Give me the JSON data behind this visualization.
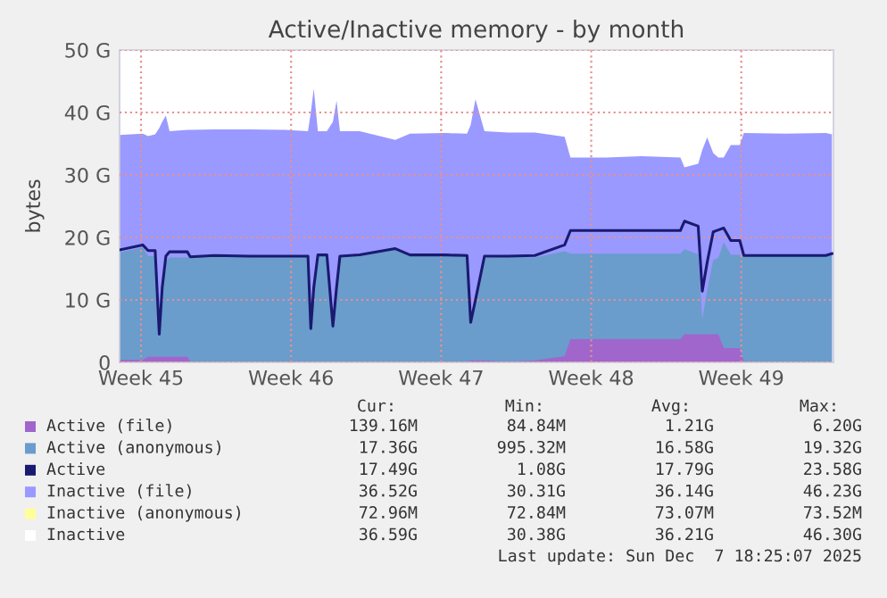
{
  "chart_data": {
    "type": "area",
    "title": "Active/Inactive memory - by month",
    "ylabel": "bytes",
    "x": [
      "2025-11-04T12:00",
      "2025-11-05T13:55",
      "2025-11-05T19:55",
      "2025-11-06T03:50",
      "2025-11-06T08:25",
      "2025-11-06T11:45",
      "2025-11-06T15:50",
      "2025-11-06T19:55",
      "2025-11-07T15:50",
      "2025-11-07T19:10",
      "2025-11-08T21:50",
      "2025-11-10T13:40",
      "2025-11-12T05:30",
      "2025-11-13T06:55",
      "2025-11-13T10:05",
      "2025-11-13T13:25",
      "2025-11-13T18:00",
      "2025-11-14T04:05",
      "2025-11-14T10:50",
      "2025-11-14T14:55",
      "2025-11-14T18:40",
      "2025-11-15T16:50",
      "2025-11-17T08:40",
      "2025-11-18T01:10",
      "2025-11-19T17:00",
      "2025-11-20T17:00",
      "2025-11-20T21:05",
      "2025-11-21T02:25",
      "2025-11-21T12:30",
      "2025-11-22T14:55",
      "2025-11-23T20:55",
      "2025-11-25T06:15",
      "2025-11-25T12:45",
      "2025-11-27T04:35",
      "2025-11-28T20:25",
      "2025-11-30T15:50",
      "2025-11-30T20:25",
      "2025-12-01T11:45",
      "2025-12-01T16:20",
      "2025-12-01T21:50",
      "2025-12-02T04:35",
      "2025-12-02T10:20",
      "2025-12-02T16:20",
      "2025-12-03T00:15",
      "2025-12-03T10:20",
      "2025-12-03T14:55",
      "2025-12-05T12:55",
      "2025-12-07T10:35",
      "2025-12-07T17:30"
    ],
    "xlim": [
      "2025-11-04T12:00",
      "2025-12-07T19:12"
    ],
    "xticks": [
      {
        "value": "2025-11-05T12:00",
        "label": "Week 45"
      },
      {
        "value": "2025-11-12T12:00",
        "label": "Week 46"
      },
      {
        "value": "2025-11-19T12:00",
        "label": "Week 47"
      },
      {
        "value": "2025-11-26T12:00",
        "label": "Week 48"
      },
      {
        "value": "2025-12-03T12:00",
        "label": "Week 49"
      }
    ],
    "ylim": [
      0,
      50
    ],
    "yticks": [
      0,
      {
        "value": 10,
        "label": "10 G"
      },
      {
        "value": 20,
        "label": "20 G"
      },
      {
        "value": 30,
        "label": "30 G"
      },
      {
        "value": 40,
        "label": "40 G"
      },
      {
        "value": 50,
        "label": "50 G"
      }
    ],
    "grid": true,
    "legend": "bottom",
    "series": [
      {
        "name": "Active (file)",
        "color": "#a066cc",
        "values": [
          0.4,
          0.4,
          0.9,
          0.9,
          0.9,
          0.9,
          0.9,
          0.9,
          0.9,
          0.1,
          0.1,
          0.1,
          0.1,
          0.1,
          0.1,
          0.1,
          0.1,
          0.1,
          0.1,
          0.1,
          0.1,
          0.1,
          0.1,
          0.1,
          0.1,
          0.1,
          0.3,
          0.3,
          0.3,
          0.1,
          0.3,
          1.0,
          3.7,
          3.7,
          3.7,
          3.7,
          4.5,
          4.5,
          4.5,
          4.5,
          4.5,
          4.5,
          2.3,
          2.3,
          2.3,
          0.1,
          0.1,
          0.1,
          0.1
        ]
      },
      {
        "name": "Active (anonymous)",
        "color": "#6a9ccc",
        "values": [
          17.6,
          18.4,
          17.0,
          17.0,
          3.6,
          11.1,
          16.1,
          16.8,
          16.8,
          16.8,
          17.0,
          16.9,
          16.9,
          16.9,
          5.3,
          11.9,
          17.1,
          17.1,
          5.7,
          11.9,
          16.9,
          17.1,
          18.1,
          17.1,
          17.1,
          17.0,
          6.1,
          9.7,
          16.7,
          16.9,
          16.8,
          17.8,
          17.4,
          17.4,
          17.4,
          17.4,
          18.1,
          17.3,
          6.9,
          11.5,
          16.4,
          16.7,
          19.2,
          17.2,
          17.2,
          17.0,
          17.0,
          17.0,
          17.3
        ]
      },
      {
        "name": "Active",
        "color": "#1a1a70",
        "type": "line",
        "values": [
          18.0,
          18.8,
          17.9,
          17.9,
          4.5,
          12,
          17.0,
          17.7,
          17.7,
          16.9,
          17.1,
          17.0,
          17.0,
          17.0,
          5.4,
          12,
          17.2,
          17.2,
          5.8,
          12,
          17.0,
          17.2,
          18.2,
          17.2,
          17.2,
          17.1,
          6.4,
          10,
          17.0,
          17.0,
          17.1,
          18.8,
          21.1,
          21.1,
          21.1,
          21.1,
          22.6,
          21.8,
          11.4,
          16,
          20.9,
          21.2,
          21.5,
          19.5,
          19.5,
          17.1,
          17.1,
          17.1,
          17.4
        ]
      },
      {
        "name": "Inactive (file)",
        "color": "#9999ff",
        "values": [
          36.4,
          36.6,
          36.2,
          36.5,
          37.5,
          38.5,
          39.5,
          37.0,
          37.2,
          37.2,
          37.3,
          37.3,
          37.2,
          37.0,
          40,
          43.8,
          37.0,
          37.0,
          38.5,
          41.9,
          37.0,
          37.0,
          35.6,
          36.6,
          36.7,
          36.6,
          38,
          42.1,
          37.0,
          36.8,
          36.8,
          36.1,
          32.8,
          32.8,
          33.0,
          32.8,
          31.2,
          31.8,
          34,
          36.0,
          33.5,
          32.8,
          32.8,
          34.8,
          34.8,
          36.7,
          36.6,
          36.7,
          36.5
        ]
      },
      {
        "name": "Inactive (anonymous)",
        "color": "#ffff99",
        "type": "line",
        "values": [
          null,
          null,
          null,
          null,
          null,
          null,
          null,
          null,
          null,
          null,
          null,
          null,
          null,
          null,
          null,
          null,
          null,
          null,
          null,
          null,
          null,
          null,
          null,
          null,
          null,
          null,
          null,
          null,
          null,
          null,
          null,
          null,
          null,
          null,
          null,
          null,
          null,
          null,
          null,
          null,
          null,
          null,
          null,
          null,
          null,
          null,
          null,
          null,
          null
        ]
      },
      {
        "name": "Inactive",
        "color": "#ffffff",
        "type": "line",
        "values": [
          null,
          null,
          null,
          null,
          null,
          null,
          null,
          null,
          null,
          null,
          null,
          null,
          null,
          null,
          null,
          null,
          null,
          null,
          null,
          null,
          null,
          null,
          null,
          null,
          null,
          null,
          null,
          null,
          null,
          null,
          null,
          null,
          null,
          null,
          null,
          null,
          null,
          null,
          null,
          null,
          null,
          null,
          null,
          null,
          null,
          null,
          null,
          null,
          null
        ]
      }
    ],
    "annotations": [
      "Cur:",
      "Min:",
      "Avg:",
      "Max:",
      "139.16M",
      "84.84M",
      "1.21G",
      "6.20G",
      "17.36G",
      "995.32M",
      "16.58G",
      "19.32G",
      "17.49G",
      "1.08G",
      "17.79G",
      "23.58G",
      "36.52G",
      "30.31G",
      "36.14G",
      "46.23G",
      "72.96M",
      "72.84M",
      "73.07M",
      "73.52M",
      "36.59G",
      "30.38G",
      "36.21G",
      "46.30G",
      "Last update: Sun Dec  7 18:25:07 2025"
    ]
  }
}
